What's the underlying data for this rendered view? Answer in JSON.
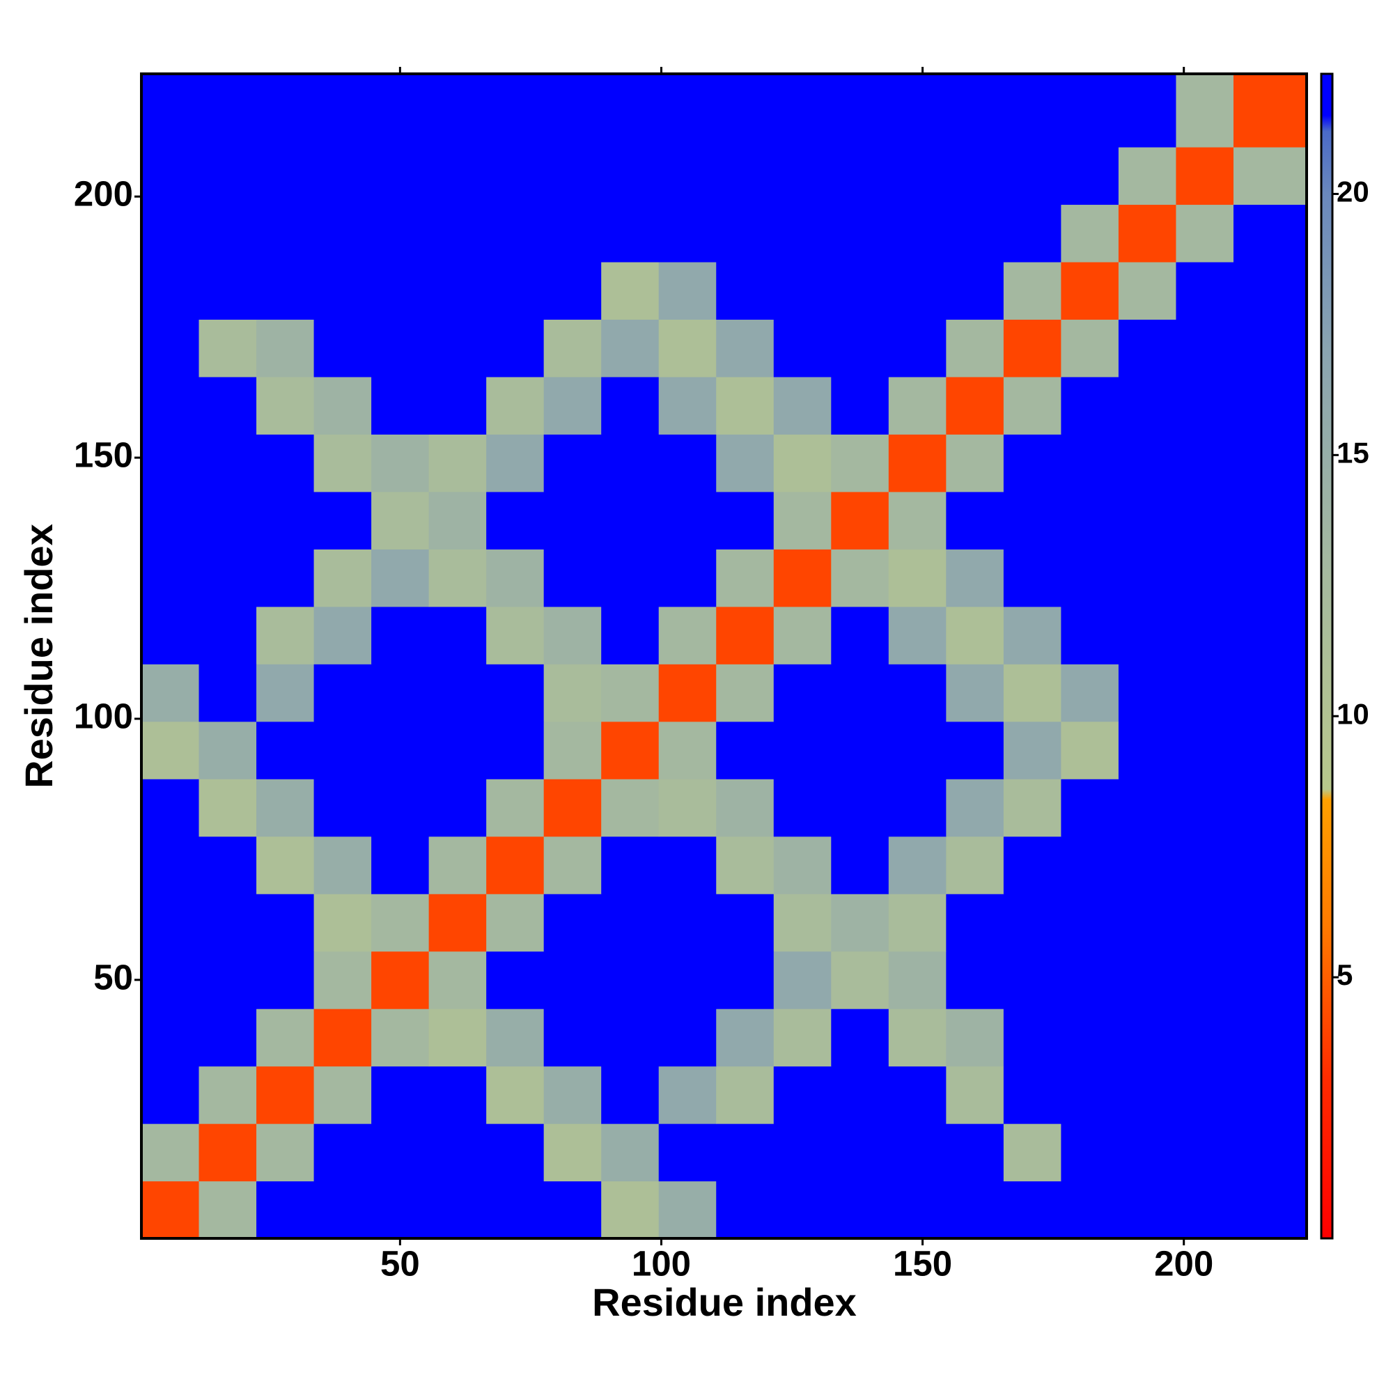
{
  "chart_data": {
    "type": "heatmap",
    "xlabel": "Residue index",
    "ylabel": "Residue index",
    "x": [
      6,
      17,
      28,
      39,
      50,
      61,
      72,
      83,
      94,
      105,
      116,
      127,
      138,
      149,
      160,
      171,
      182,
      193,
      204,
      215
    ],
    "y": [
      6,
      17,
      28,
      39,
      50,
      61,
      72,
      83,
      94,
      105,
      116,
      127,
      138,
      149,
      160,
      171,
      182,
      193,
      204,
      215
    ],
    "values": [
      [
        4,
        13,
        22,
        22,
        22,
        22,
        22,
        22,
        11,
        15,
        22,
        22,
        22,
        22,
        22,
        22,
        22,
        22,
        22,
        22
      ],
      [
        13,
        4,
        13,
        22,
        22,
        22,
        22,
        11,
        15,
        22,
        22,
        22,
        22,
        22,
        22,
        12,
        22,
        22,
        22,
        22
      ],
      [
        22,
        13,
        4,
        13,
        22,
        22,
        11,
        15,
        22,
        16,
        12,
        22,
        22,
        22,
        12,
        22,
        22,
        22,
        22,
        22
      ],
      [
        22,
        22,
        13,
        4,
        13,
        11,
        15,
        22,
        22,
        22,
        16,
        12,
        22,
        12,
        14,
        22,
        22,
        22,
        22,
        22
      ],
      [
        22,
        22,
        22,
        13,
        4,
        13,
        22,
        22,
        22,
        22,
        22,
        16,
        12,
        14,
        22,
        22,
        22,
        22,
        22,
        22
      ],
      [
        22,
        22,
        22,
        11,
        13,
        4,
        13,
        22,
        22,
        22,
        22,
        12,
        14,
        12,
        22,
        22,
        22,
        22,
        22,
        22
      ],
      [
        22,
        22,
        11,
        15,
        22,
        13,
        4,
        13,
        22,
        22,
        12,
        14,
        22,
        16,
        12,
        22,
        22,
        22,
        22,
        22
      ],
      [
        22,
        11,
        15,
        22,
        22,
        22,
        13,
        4,
        13,
        12,
        14,
        22,
        22,
        22,
        16,
        12,
        22,
        22,
        22,
        22
      ],
      [
        11,
        15,
        22,
        22,
        22,
        22,
        22,
        13,
        4,
        13,
        22,
        22,
        22,
        22,
        22,
        16,
        11,
        22,
        22,
        22
      ],
      [
        15,
        22,
        16,
        22,
        22,
        22,
        22,
        12,
        13,
        4,
        13,
        22,
        22,
        22,
        16,
        11,
        16,
        22,
        22,
        22
      ],
      [
        22,
        22,
        12,
        16,
        22,
        22,
        12,
        14,
        22,
        13,
        4,
        13,
        22,
        16,
        11,
        16,
        22,
        22,
        22,
        22
      ],
      [
        22,
        22,
        22,
        12,
        16,
        12,
        14,
        22,
        22,
        22,
        13,
        4,
        13,
        11,
        16,
        22,
        22,
        22,
        22,
        22
      ],
      [
        22,
        22,
        22,
        22,
        12,
        14,
        22,
        22,
        22,
        22,
        22,
        13,
        4,
        13,
        22,
        22,
        22,
        22,
        22,
        22
      ],
      [
        22,
        22,
        22,
        12,
        14,
        12,
        16,
        22,
        22,
        22,
        16,
        11,
        13,
        4,
        13,
        22,
        22,
        22,
        22,
        22
      ],
      [
        22,
        22,
        12,
        14,
        22,
        22,
        12,
        16,
        22,
        16,
        11,
        16,
        22,
        13,
        4,
        13,
        22,
        22,
        22,
        22
      ],
      [
        22,
        12,
        14,
        22,
        22,
        22,
        22,
        12,
        16,
        11,
        16,
        22,
        22,
        22,
        13,
        4,
        13,
        22,
        22,
        22
      ],
      [
        22,
        22,
        22,
        22,
        22,
        22,
        22,
        22,
        11,
        16,
        22,
        22,
        22,
        22,
        22,
        13,
        4,
        13,
        22,
        22
      ],
      [
        22,
        22,
        22,
        22,
        22,
        22,
        22,
        22,
        22,
        22,
        22,
        22,
        22,
        22,
        22,
        22,
        13,
        4,
        13,
        22
      ],
      [
        22,
        22,
        22,
        22,
        22,
        22,
        22,
        22,
        22,
        22,
        22,
        22,
        22,
        22,
        22,
        22,
        22,
        13,
        4,
        13
      ],
      [
        22,
        22,
        22,
        22,
        22,
        22,
        22,
        22,
        22,
        22,
        22,
        22,
        22,
        22,
        22,
        22,
        22,
        22,
        13,
        4
      ]
    ],
    "xlim": [
      0.5,
      223.5
    ],
    "ylim": [
      0.5,
      223.5
    ],
    "xticks": [
      50,
      100,
      150,
      200
    ],
    "yticks": [
      50,
      100,
      150,
      200
    ],
    "clim": [
      0,
      22.3
    ],
    "cticks": [
      5,
      10,
      15,
      20
    ],
    "colorscale": [
      [
        0,
        "#ff0000"
      ],
      [
        3,
        "#ff2a00"
      ],
      [
        6,
        "#ff7a00"
      ],
      [
        8.4,
        "#ffa000"
      ],
      [
        8.6,
        "#b8c88c"
      ],
      [
        13,
        "#a4b8a0"
      ],
      [
        17,
        "#8aa4b0"
      ],
      [
        20,
        "#6a88bc"
      ],
      [
        21.2,
        "#4a6ac8"
      ],
      [
        21.5,
        "#0000ff"
      ],
      [
        22.3,
        "#0000ff"
      ]
    ]
  }
}
